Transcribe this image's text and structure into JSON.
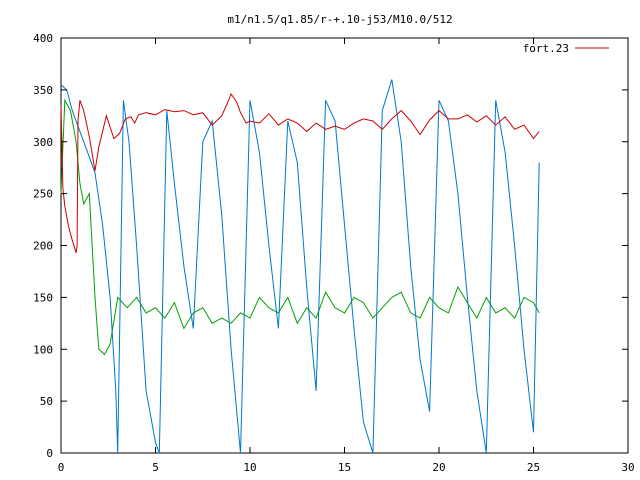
{
  "chart_data": {
    "type": "line",
    "title": "m1/n1.5/q1.85/r-+.10-j53/M10.0/512",
    "xlabel": "",
    "ylabel": "",
    "xlim": [
      0,
      30
    ],
    "ylim": [
      0,
      400
    ],
    "x_ticks": [
      0,
      5,
      10,
      15,
      20,
      25,
      30
    ],
    "y_ticks": [
      0,
      50,
      100,
      150,
      200,
      250,
      300,
      350,
      400
    ],
    "grid": false,
    "legend_position": "top-right",
    "series": [
      {
        "name": "fort.23",
        "color": "#cc0000",
        "x": [
          0,
          0.1,
          0.2,
          0.4,
          0.6,
          0.8,
          0.85,
          0.9,
          1.0,
          1.2,
          1.5,
          1.8,
          2.0,
          2.4,
          2.8,
          3.1,
          3.4,
          3.7,
          3.9,
          4.1,
          4.5,
          5.0,
          5.5,
          6.0,
          6.5,
          7.0,
          7.5,
          8.0,
          8.5,
          8.8,
          9.0,
          9.3,
          9.5,
          9.8,
          10.0,
          10.5,
          11.0,
          11.5,
          12.0,
          12.5,
          13.0,
          13.5,
          14.0,
          14.5,
          15.0,
          15.5,
          16.0,
          16.5,
          17.0,
          17.5,
          18.0,
          18.5,
          19.0,
          19.5,
          20.0,
          20.5,
          21.0,
          21.5,
          22.0,
          22.5,
          23.0,
          23.5,
          24.0,
          24.5,
          25.0,
          25.3
        ],
        "y": [
          335,
          255,
          238,
          218,
          205,
          193,
          200,
          320,
          340,
          330,
          305,
          272,
          295,
          325,
          303,
          308,
          322,
          324,
          318,
          326,
          328,
          326,
          331,
          329,
          330,
          326,
          328,
          316,
          325,
          337,
          346,
          338,
          328,
          318,
          320,
          318,
          327,
          316,
          322,
          318,
          310,
          318,
          312,
          315,
          312,
          318,
          322,
          320,
          312,
          322,
          330,
          320,
          307,
          321,
          330,
          322,
          322,
          326,
          319,
          325,
          316,
          324,
          312,
          316,
          303,
          310
        ]
      },
      {
        "name": "",
        "color": "#0077cc",
        "x": [
          0,
          0.3,
          0.6,
          1.0,
          1.4,
          1.8,
          2.2,
          2.6,
          2.9,
          3.0,
          3.3,
          3.6,
          4.0,
          4.5,
          5.0,
          5.2,
          5.6,
          6.0,
          6.5,
          7.0,
          7.5,
          8.0,
          8.5,
          9.0,
          9.5,
          10.0,
          10.5,
          11.0,
          11.5,
          12.0,
          12.5,
          13.0,
          13.5,
          14.0,
          14.5,
          15.0,
          15.5,
          16.0,
          16.5,
          17.0,
          17.5,
          18.0,
          18.5,
          19.0,
          19.5,
          20.0,
          20.5,
          21.0,
          21.5,
          22.0,
          22.5,
          23.0,
          23.5,
          24.0,
          24.5,
          25.0,
          25.3
        ],
        "y": [
          355,
          350,
          330,
          310,
          290,
          270,
          220,
          150,
          60,
          0,
          340,
          300,
          200,
          60,
          10,
          0,
          330,
          260,
          180,
          120,
          300,
          320,
          230,
          100,
          0,
          340,
          290,
          200,
          120,
          320,
          280,
          160,
          60,
          340,
          320,
          220,
          120,
          30,
          0,
          330,
          360,
          300,
          180,
          90,
          40,
          340,
          320,
          250,
          150,
          60,
          0,
          340,
          290,
          200,
          100,
          20,
          280
        ]
      },
      {
        "name": "",
        "color": "#00a000",
        "x": [
          0,
          0.2,
          0.5,
          0.8,
          1.0,
          1.2,
          1.5,
          1.8,
          2.0,
          2.3,
          2.6,
          3.0,
          3.5,
          4.0,
          4.5,
          5.0,
          5.5,
          6.0,
          6.5,
          7.0,
          7.5,
          8.0,
          8.5,
          9.0,
          9.5,
          10.0,
          10.5,
          11.0,
          11.5,
          12.0,
          12.5,
          13.0,
          13.5,
          14.0,
          14.5,
          15.0,
          15.5,
          16.0,
          16.5,
          17.0,
          17.5,
          18.0,
          18.5,
          19.0,
          19.5,
          20.0,
          20.5,
          21.0,
          21.5,
          22.0,
          22.5,
          23.0,
          23.5,
          24.0,
          24.5,
          25.0,
          25.3
        ],
        "y": [
          250,
          340,
          330,
          300,
          260,
          240,
          250,
          150,
          100,
          95,
          105,
          150,
          140,
          150,
          135,
          140,
          130,
          145,
          120,
          135,
          140,
          125,
          130,
          125,
          135,
          130,
          150,
          140,
          135,
          150,
          125,
          140,
          130,
          155,
          140,
          135,
          150,
          145,
          130,
          140,
          150,
          155,
          135,
          130,
          150,
          140,
          135,
          160,
          145,
          130,
          150,
          135,
          140,
          130,
          150,
          145,
          135
        ]
      }
    ]
  }
}
